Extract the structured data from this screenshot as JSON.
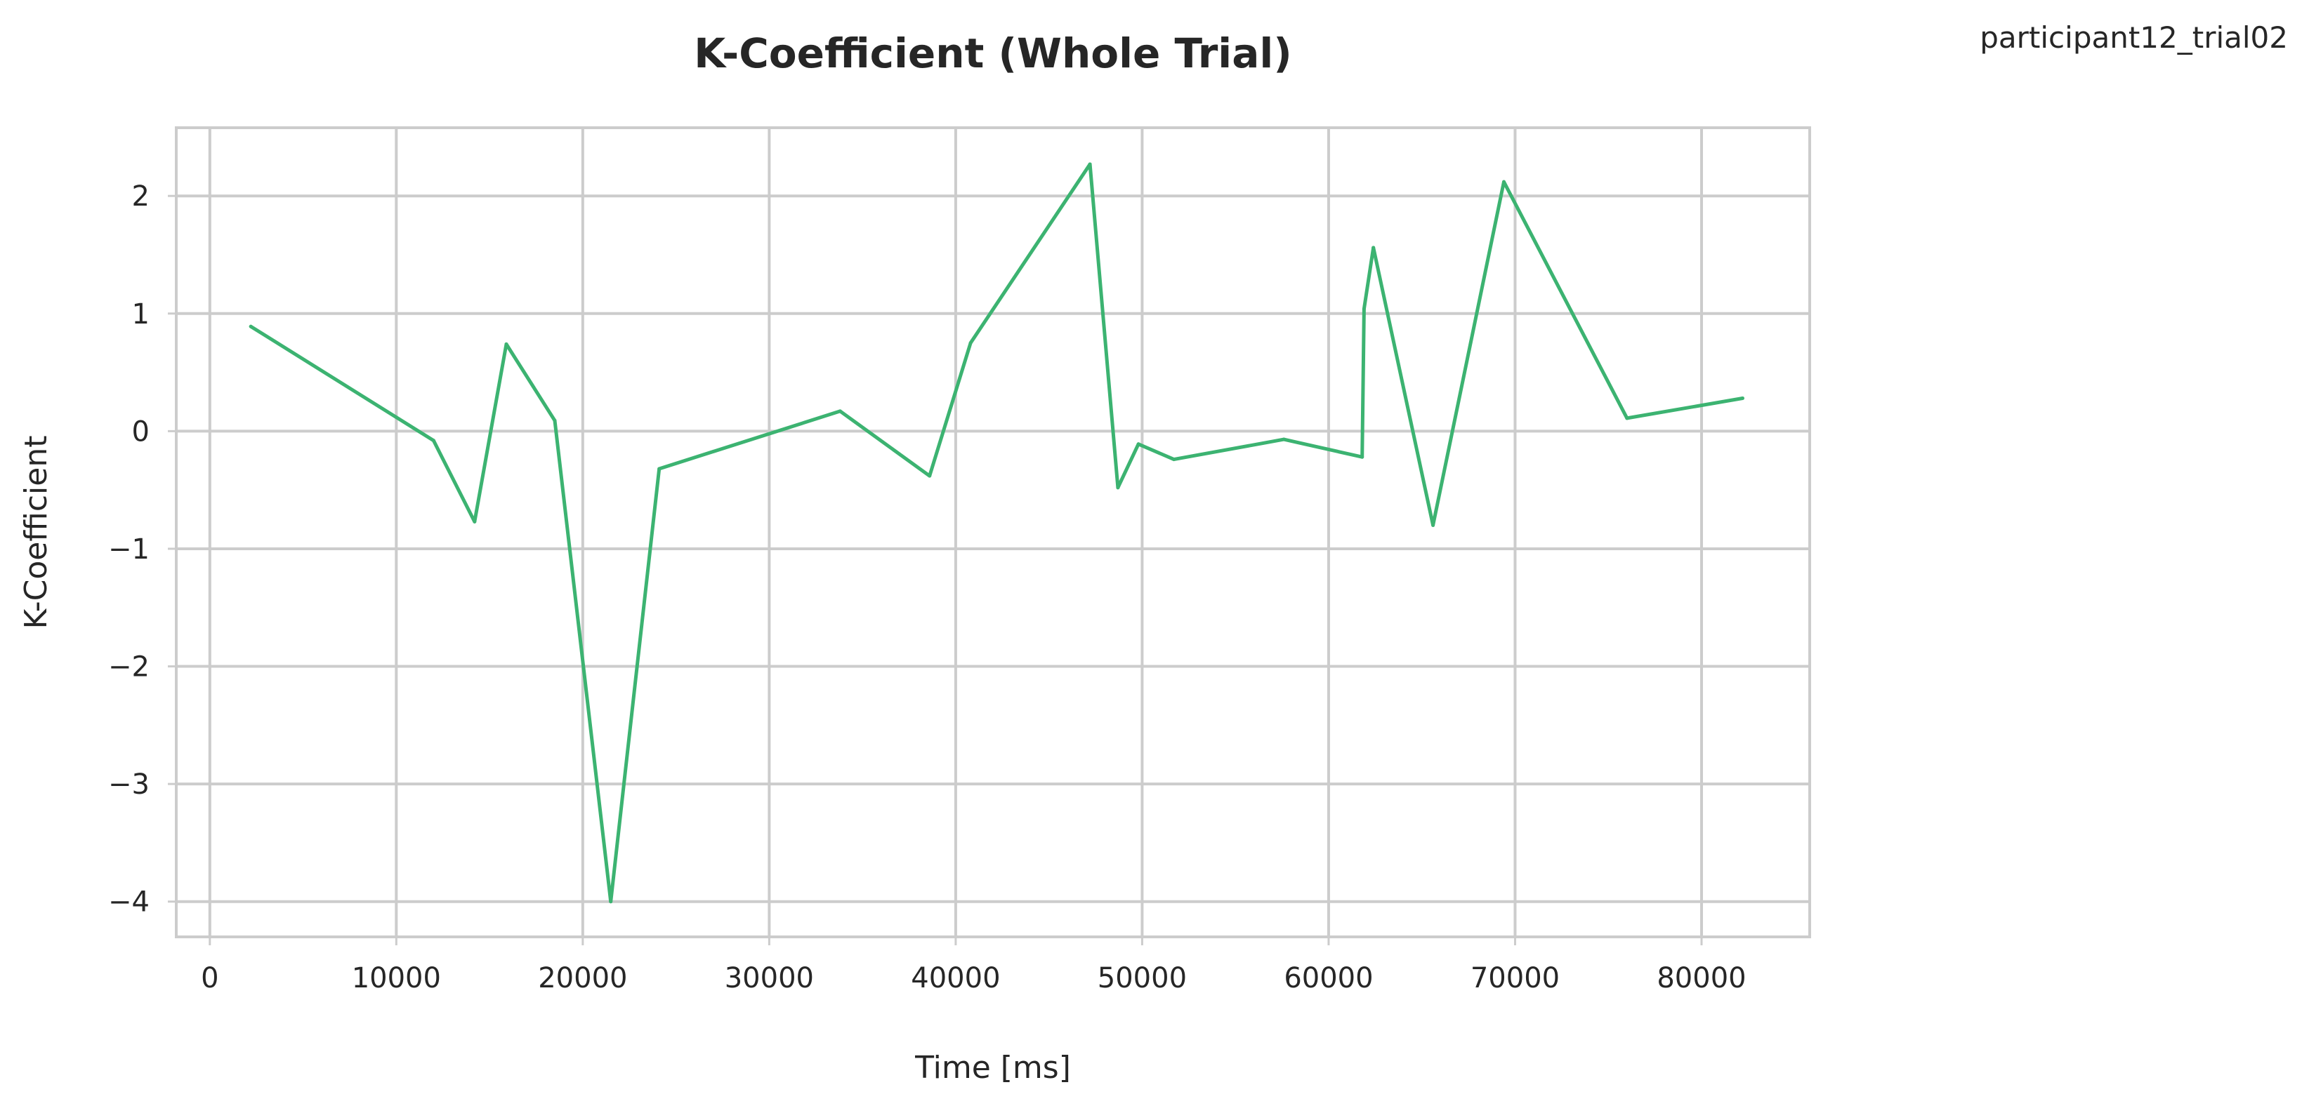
{
  "corner_label": "participant12_trial02",
  "chart_data": {
    "type": "line",
    "title": "K-Coefficient (Whole Trial)",
    "xlabel": "Time [ms]",
    "ylabel": "K-Coefficient",
    "xlim": [
      -1800,
      85800
    ],
    "ylim": [
      -4.3,
      2.58
    ],
    "xticks": [
      0,
      10000,
      20000,
      30000,
      40000,
      50000,
      60000,
      70000,
      80000
    ],
    "xtick_labels": [
      "0",
      "10000",
      "20000",
      "30000",
      "40000",
      "50000",
      "60000",
      "70000",
      "80000"
    ],
    "yticks": [
      2,
      1,
      0,
      -1,
      -2,
      -3,
      -4
    ],
    "ytick_labels": [
      "2",
      "1",
      "0",
      "−1",
      "−2",
      "−3",
      "−4"
    ],
    "grid": true,
    "series": [
      {
        "color": "#3cb371",
        "x": [
          2200,
          12000,
          14200,
          15900,
          18500,
          21500,
          24100,
          33800,
          38600,
          40800,
          47200,
          48700,
          49800,
          51700,
          57600,
          61800,
          61900,
          62400,
          65600,
          69400,
          76000,
          82200
        ],
        "y": [
          0.89,
          -0.08,
          -0.77,
          0.74,
          0.09,
          -4.0,
          -0.32,
          0.17,
          -0.38,
          0.75,
          2.27,
          -0.48,
          -0.11,
          -0.24,
          -0.07,
          -0.22,
          1.04,
          1.56,
          -0.8,
          2.12,
          0.11,
          0.28
        ]
      }
    ]
  }
}
